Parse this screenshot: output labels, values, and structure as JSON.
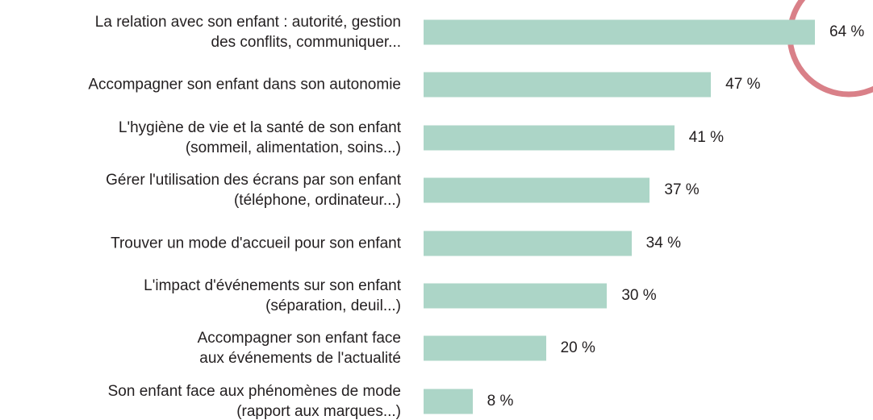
{
  "chart_data": {
    "type": "bar",
    "orientation": "horizontal",
    "categories": [
      "La relation avec son enfant : autorité, gestion\ndes conflits, communiquer...",
      "Accompagner son enfant dans son autonomie",
      "L'hygiène de vie et la santé de son enfant\n(sommeil, alimentation, soins...)",
      "Gérer l'utilisation des écrans par son enfant\n(téléphone, ordinateur...)",
      "Trouver un mode d'accueil pour son enfant",
      "L'impact d'événements sur son enfant\n(séparation, deuil...)",
      "Accompagner son enfant face\naux événements de l'actualité",
      "Son enfant face aux phénomènes de mode\n(rapport aux marques...)"
    ],
    "values": [
      64,
      47,
      41,
      37,
      34,
      30,
      20,
      8
    ],
    "value_labels": [
      "64 %",
      "47 %",
      "41 %",
      "37 %",
      "34 %",
      "30 %",
      "20 %",
      "8 %"
    ],
    "color": "#acd5c7"
  }
}
